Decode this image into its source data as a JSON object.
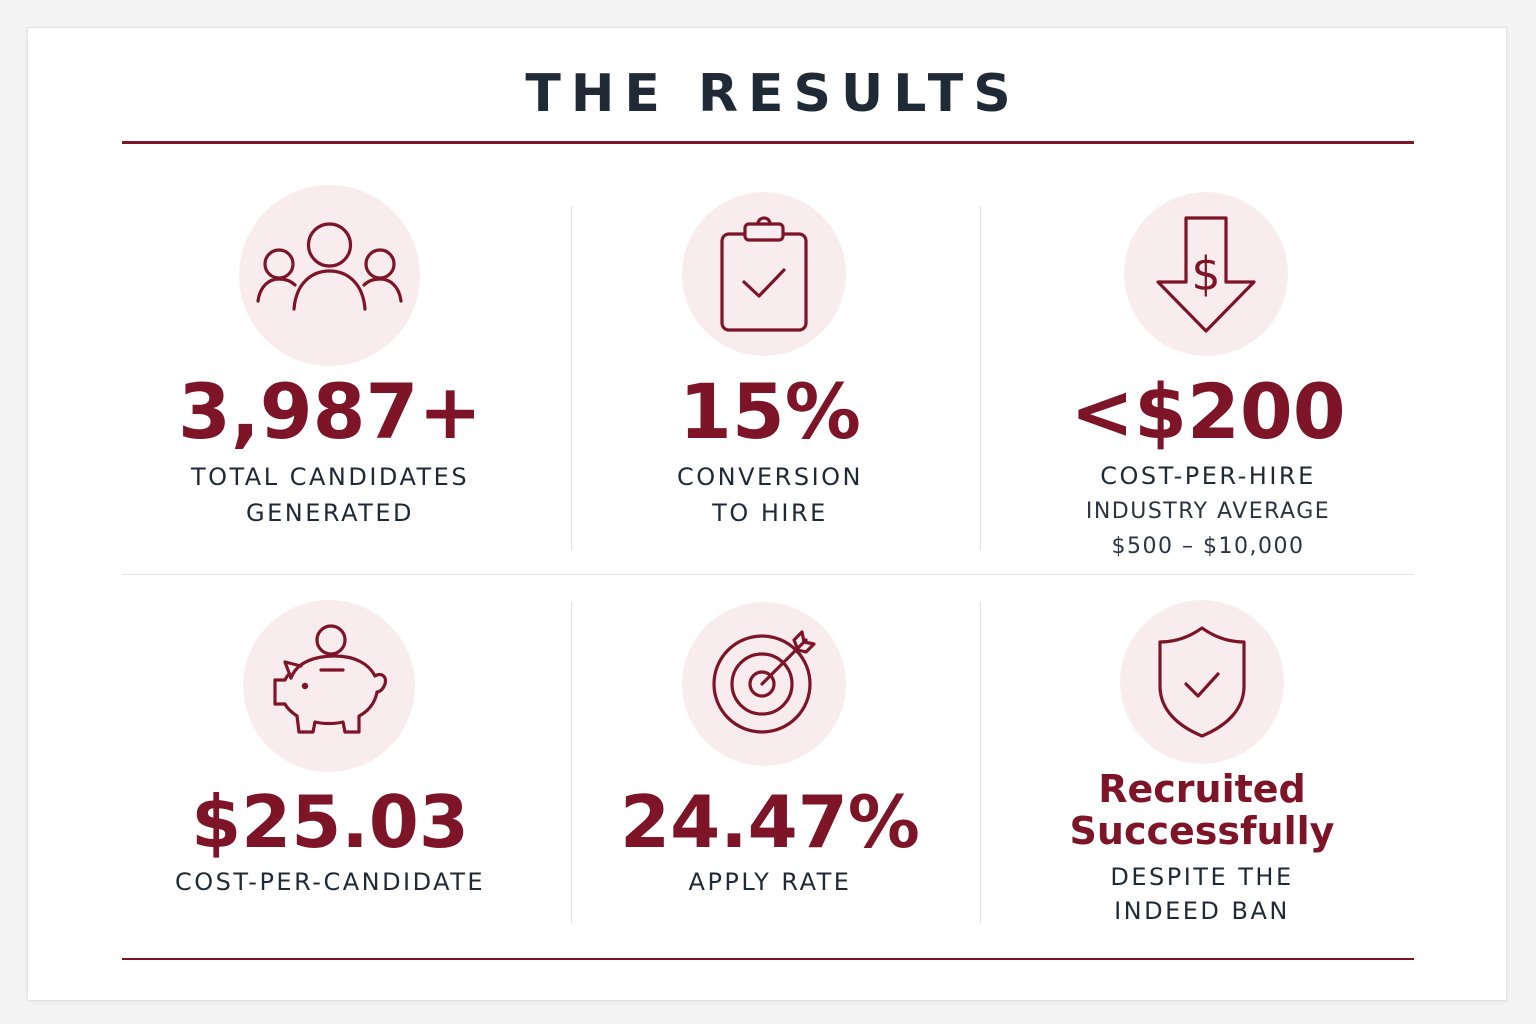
{
  "title": "THE RESULTS",
  "colors": {
    "accent": "#7d1428",
    "icon_bg": "#f9ecee",
    "text_dark": "#1f2a36",
    "divider": "#e2e2e2"
  },
  "metrics": [
    {
      "icon": "people-group-icon",
      "value": "3,987+",
      "label_line1": "TOTAL CANDIDATES",
      "label_line2": "GENERATED"
    },
    {
      "icon": "clipboard-check-icon",
      "value": "15%",
      "label_line1": "CONVERSION",
      "label_line2": "TO HIRE"
    },
    {
      "icon": "dollar-down-arrow-icon",
      "value": "<$200",
      "label_line1": "COST-PER-HIRE",
      "sub_line1": "INDUSTRY AVERAGE",
      "sub_line2": "$500 – $10,000"
    },
    {
      "icon": "piggy-bank-icon",
      "value": "$25.03",
      "label_line1": "COST-PER-CANDIDATE"
    },
    {
      "icon": "target-arrow-icon",
      "value": "24.47%",
      "label_line1": "APPLY RATE"
    },
    {
      "icon": "shield-check-icon",
      "value_line1": "Recruited",
      "value_line2": "Successfully",
      "label_line1": "DESPITE THE",
      "label_line2": "INDEED BAN"
    }
  ]
}
